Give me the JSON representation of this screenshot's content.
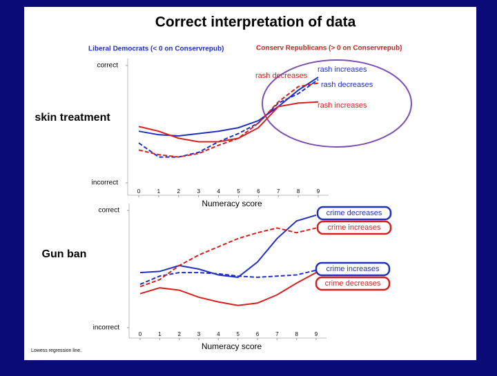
{
  "title": "Correct interpretation of data",
  "legend_left": "Liberal Democrats (< 0 on Conservrepub)",
  "legend_right": "Conserv Republicans (> 0 on Conservrepub)",
  "footnote": "Lowess regression line.",
  "chart_data": [
    {
      "type": "line",
      "label": "skin treatment",
      "xlabel": "Numeracy score",
      "x": [
        0,
        1,
        2,
        3,
        4,
        5,
        6,
        7,
        8,
        9
      ],
      "xlim": [
        0,
        9
      ],
      "xticks": [
        0,
        1,
        2,
        3,
        4,
        5,
        6,
        7,
        8,
        9
      ],
      "ylim": [
        0,
        1
      ],
      "yticks": [
        {
          "value": 0,
          "label": "incorrect"
        },
        {
          "value": 1,
          "label": "correct"
        }
      ],
      "series": [
        {
          "color": "#1f2fc0",
          "dash": false,
          "values": [
            0.44,
            0.41,
            0.4,
            0.42,
            0.44,
            0.47,
            0.53,
            0.65,
            0.79,
            0.9
          ]
        },
        {
          "color": "#1f2fc0",
          "dash": true,
          "values": [
            0.34,
            0.22,
            0.22,
            0.26,
            0.35,
            0.42,
            0.51,
            0.68,
            0.76,
            0.88
          ]
        },
        {
          "color": "#d81f1f",
          "dash": false,
          "values": [
            0.48,
            0.44,
            0.38,
            0.35,
            0.35,
            0.38,
            0.47,
            0.65,
            0.68,
            0.69
          ]
        },
        {
          "color": "#d81f1f",
          "dash": true,
          "values": [
            0.28,
            0.24,
            0.22,
            0.25,
            0.32,
            0.38,
            0.51,
            0.69,
            0.82,
            0.85
          ]
        }
      ],
      "annotations": [
        {
          "text": "rash decreases",
          "color": "#d81f1f"
        },
        {
          "text": "rash increases",
          "color": "#1f2fc0"
        },
        {
          "text": "rash decreases",
          "color": "#1f2fc0"
        },
        {
          "text": "rash increases",
          "color": "#d81f1f"
        }
      ]
    },
    {
      "type": "line",
      "label": "Gun ban",
      "xlabel": "Numeracy score",
      "x": [
        0,
        1,
        2,
        3,
        4,
        5,
        6,
        7,
        8,
        9
      ],
      "xlim": [
        0,
        9
      ],
      "xticks": [
        0,
        1,
        2,
        3,
        4,
        5,
        6,
        7,
        8,
        9
      ],
      "ylim": [
        0,
        1
      ],
      "yticks": [
        {
          "value": 0,
          "label": "incorrect"
        },
        {
          "value": 1,
          "label": "correct"
        }
      ],
      "series": [
        {
          "color": "#1f2fc0",
          "dash": false,
          "values": [
            0.47,
            0.48,
            0.53,
            0.5,
            0.45,
            0.43,
            0.56,
            0.76,
            0.91,
            0.96
          ]
        },
        {
          "color": "#1f2fc0",
          "dash": true,
          "values": [
            0.37,
            0.44,
            0.47,
            0.47,
            0.46,
            0.44,
            0.43,
            0.44,
            0.45,
            0.49
          ]
        },
        {
          "color": "#d81f1f",
          "dash": false,
          "values": [
            0.29,
            0.34,
            0.32,
            0.26,
            0.22,
            0.19,
            0.21,
            0.28,
            0.38,
            0.47
          ]
        },
        {
          "color": "#d81f1f",
          "dash": true,
          "values": [
            0.35,
            0.41,
            0.53,
            0.62,
            0.69,
            0.76,
            0.81,
            0.85,
            0.81,
            0.85
          ]
        }
      ],
      "annotations": [
        {
          "text": "crime decreases",
          "color": "#1f2fc0"
        },
        {
          "text": "crime increases",
          "color": "#d81f1f"
        },
        {
          "text": "crime increases",
          "color": "#1f2fc0"
        },
        {
          "text": "crime decreases",
          "color": "#d81f1f"
        }
      ]
    }
  ]
}
